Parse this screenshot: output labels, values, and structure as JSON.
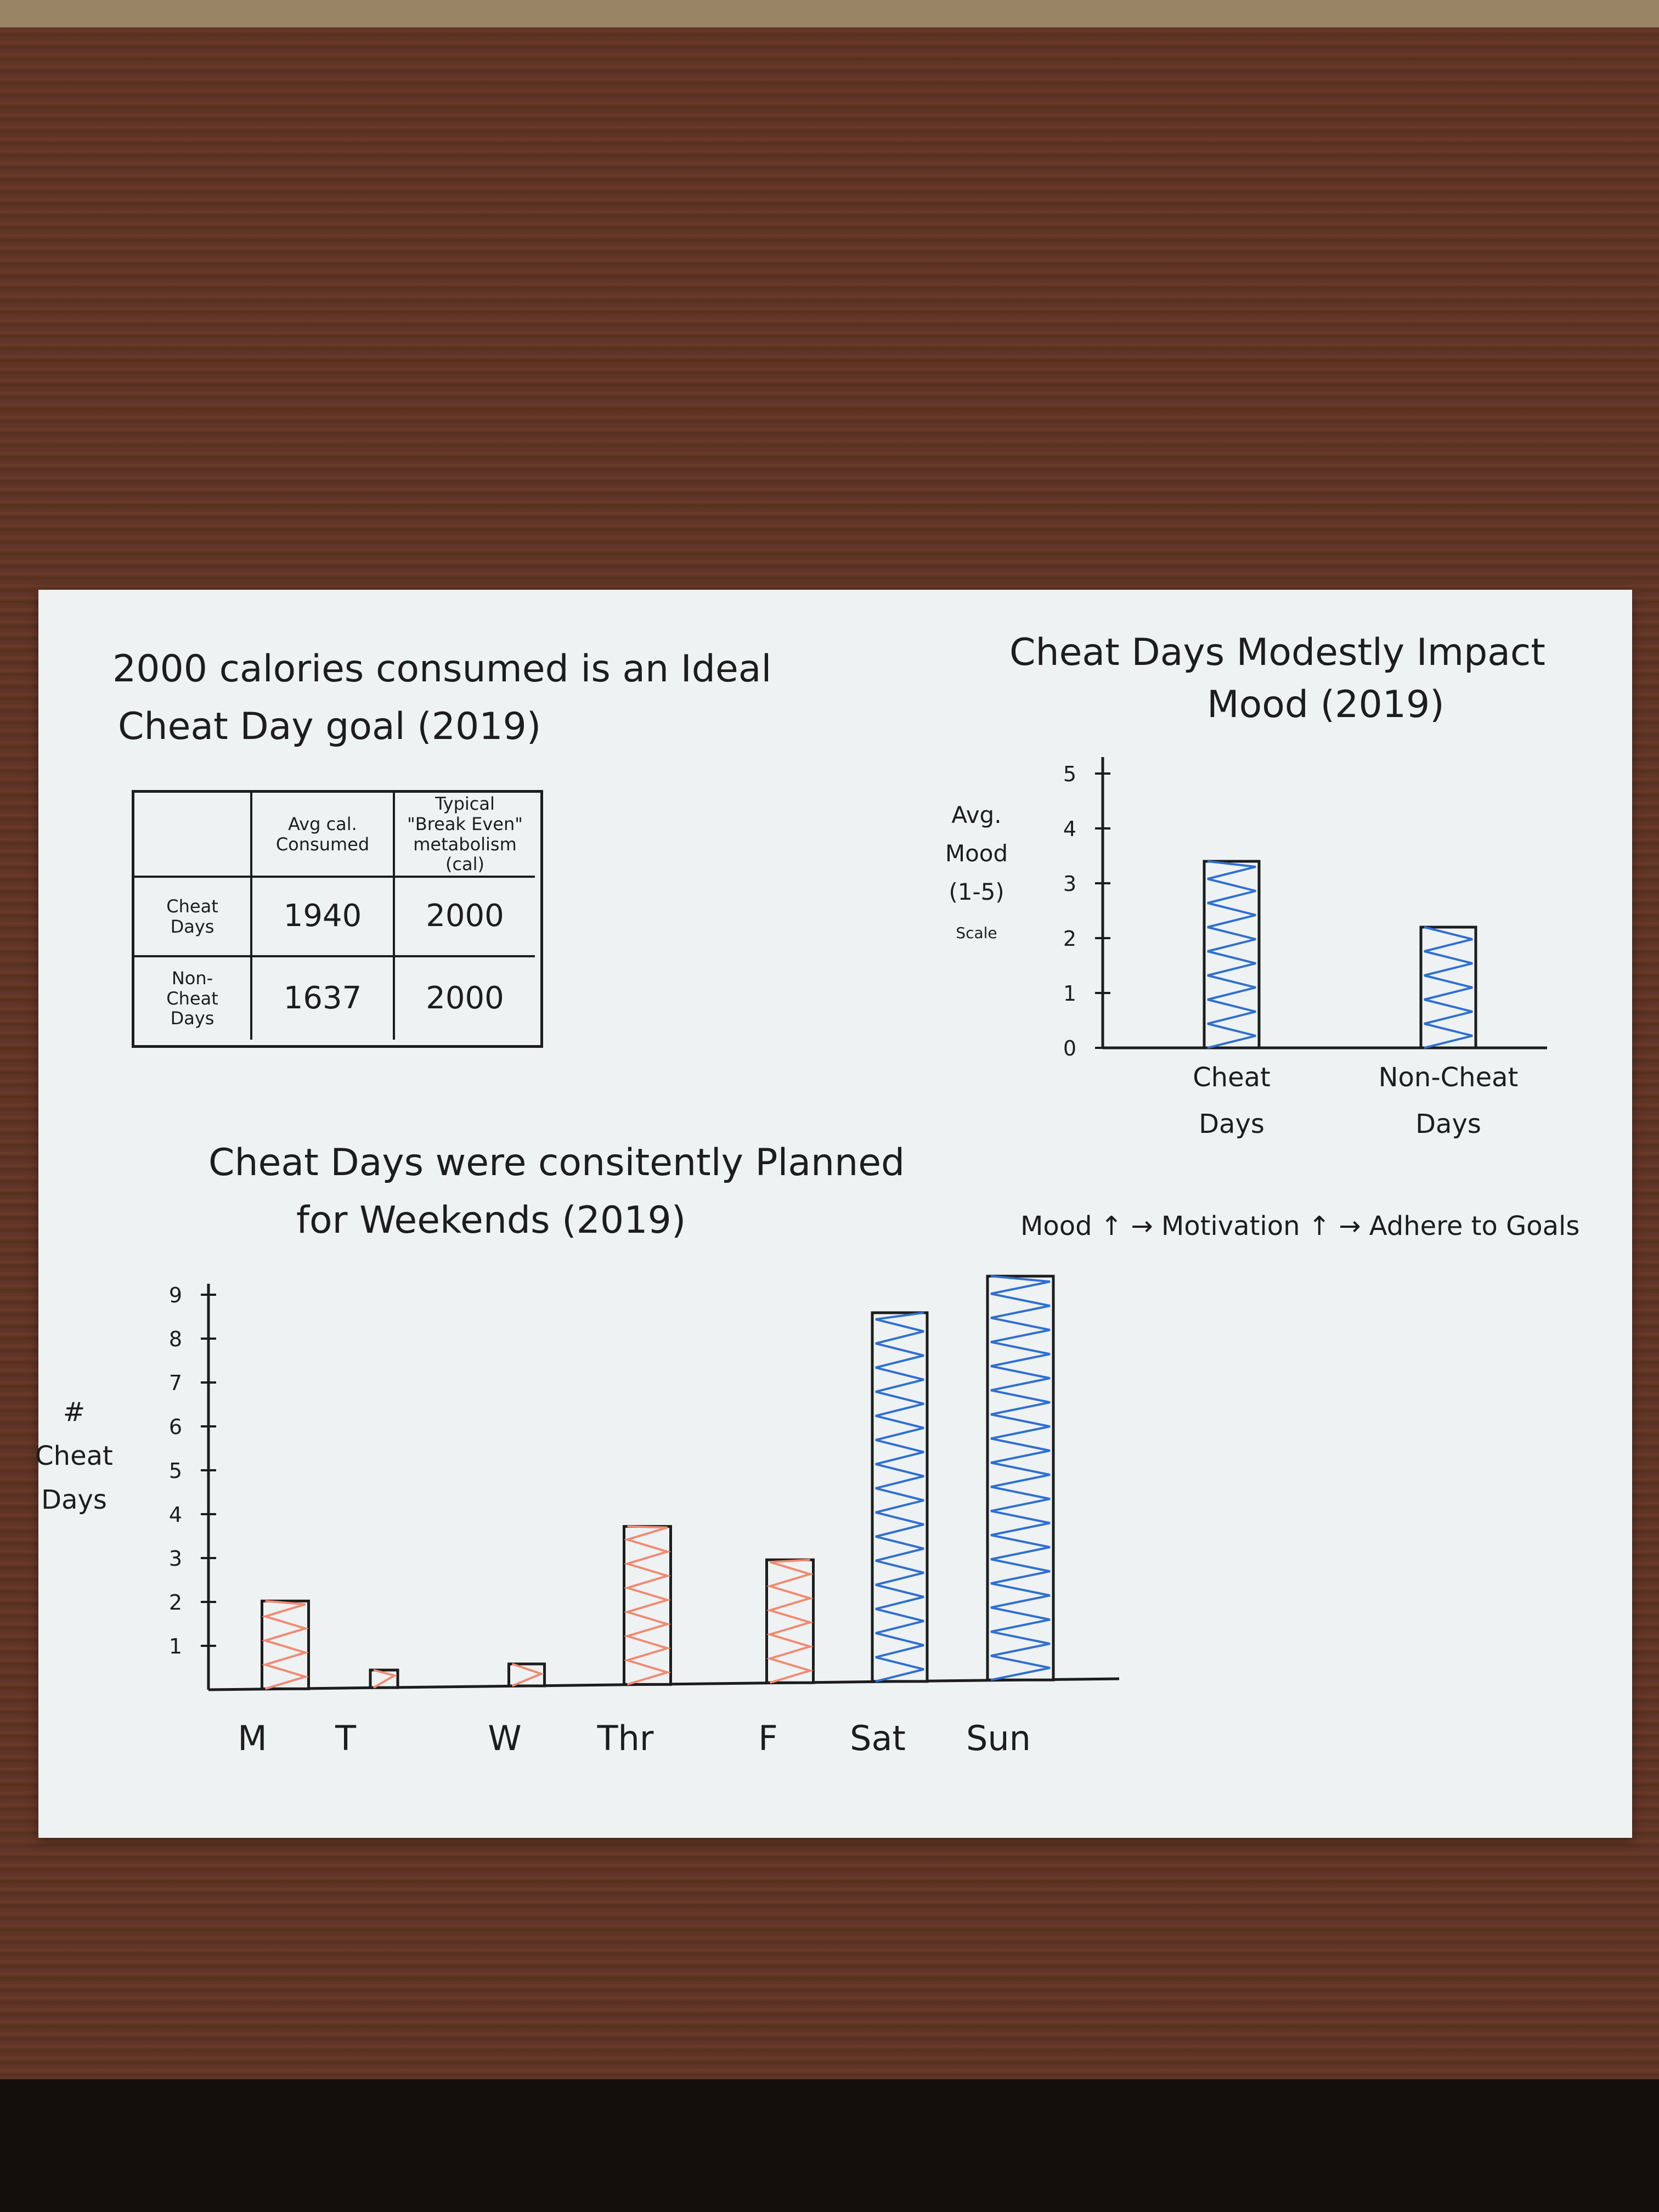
{
  "table": {
    "title_line1": "2000 calories consumed is an Ideal",
    "title_line2": "Cheat Day goal (2019)",
    "headers": [
      "",
      "Avg cal.\nConsumed",
      "Typical\n\"Break Even\"\nmetabolism (cal)"
    ],
    "rows": [
      {
        "label": "Cheat\nDays",
        "avg": "1940",
        "typical": "2000"
      },
      {
        "label": "Non-\nCheat\nDays",
        "avg": "1637",
        "typical": "2000"
      }
    ]
  },
  "note": "Mood ↑ → Motivation ↑ → Adhere to Goals",
  "colors": {
    "orange": "#f08a72",
    "blue": "#2f6fd0",
    "ink": "#1d1d1d",
    "paper": "#eef2f3"
  },
  "chart_data": [
    {
      "type": "bar",
      "title_line1": "Cheat Days Modestly Impact",
      "title_line2": "Mood (2019)",
      "ylabel": "Avg. Mood (1-5 Scale)",
      "ylabel_lines": [
        "Avg.",
        "Mood",
        "(1-5)",
        "Scale"
      ],
      "categories": [
        "Cheat Days",
        "Non-Cheat Days"
      ],
      "category_lines": [
        [
          "Cheat",
          "Days"
        ],
        [
          "Non-Cheat",
          "Days"
        ]
      ],
      "values": [
        3.4,
        2.2
      ],
      "ylim": [
        0,
        5
      ],
      "yticks": [
        "0",
        "1",
        "2",
        "3",
        "4",
        "5"
      ],
      "bar_color": "#2f6fd0"
    },
    {
      "type": "bar",
      "title_line1": "Cheat Days were consitently Planned",
      "title_line2": "for Weekends (2019)",
      "ylabel": "# Cheat Days",
      "ylabel_lines": [
        "#",
        "Cheat",
        "Days"
      ],
      "categories": [
        "M",
        "T",
        "W",
        "Thr",
        "F",
        "Sat",
        "Sun"
      ],
      "values": [
        2,
        0.4,
        0.5,
        3.6,
        2.8,
        8.4,
        9.2
      ],
      "bar_colors": [
        "#f08a72",
        "#f08a72",
        "#f08a72",
        "#f08a72",
        "#f08a72",
        "#2f6fd0",
        "#2f6fd0"
      ],
      "ylim": [
        0,
        9
      ],
      "yticks": [
        "1",
        "2",
        "3",
        "4",
        "5",
        "6",
        "7",
        "8",
        "9"
      ]
    }
  ]
}
